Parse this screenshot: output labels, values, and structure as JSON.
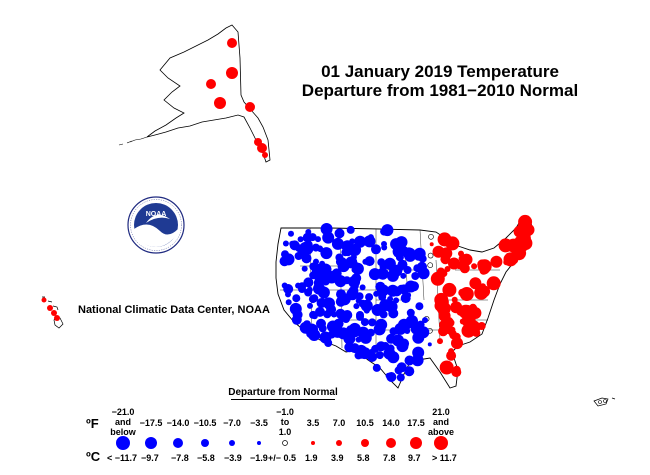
{
  "title": {
    "line1": "01 January 2019 Temperature",
    "line2": "Departure from 1981−2010 Normal"
  },
  "credit": "National Climatic Data Center, NOAA",
  "logo": {
    "text": "NOAA",
    "icon": "noaa-logo-icon"
  },
  "colors": {
    "cold": "#0000ff",
    "warm": "#ff0000",
    "land_outline": "#000000",
    "neutral": "#000000"
  },
  "legend": {
    "title": "Departure from Normal",
    "unit_f": "ºF",
    "unit_c": "ºC",
    "fahrenheit": [
      [
        "−21.0",
        "and",
        "below"
      ],
      [
        "−17.5"
      ],
      [
        "−14.0"
      ],
      [
        "−10.5"
      ],
      [
        "−7.0"
      ],
      [
        "−3.5"
      ],
      [
        "−1.0",
        "to",
        "1.0"
      ],
      [
        "3.5"
      ],
      [
        "7.0"
      ],
      [
        "10.5"
      ],
      [
        "14.0"
      ],
      [
        "17.5"
      ],
      [
        "21.0",
        "and",
        "above"
      ]
    ],
    "celsius": [
      "< −11.7",
      "−9.7",
      "−7.8",
      "−5.8",
      "−3.9",
      "−1.9",
      "+/− 0.5",
      "1.9",
      "3.9",
      "5.8",
      "7.8",
      "9.7",
      "> 11.7"
    ],
    "bins": [
      {
        "color": "cold",
        "level": 6
      },
      {
        "color": "cold",
        "level": 5
      },
      {
        "color": "cold",
        "level": 4
      },
      {
        "color": "cold",
        "level": 3
      },
      {
        "color": "cold",
        "level": 2
      },
      {
        "color": "cold",
        "level": 1
      },
      {
        "color": "neutral",
        "level": 0
      },
      {
        "color": "warm",
        "level": 1
      },
      {
        "color": "warm",
        "level": 2
      },
      {
        "color": "warm",
        "level": 3
      },
      {
        "color": "warm",
        "level": 4
      },
      {
        "color": "warm",
        "level": 5
      },
      {
        "color": "warm",
        "level": 6
      }
    ]
  }
}
